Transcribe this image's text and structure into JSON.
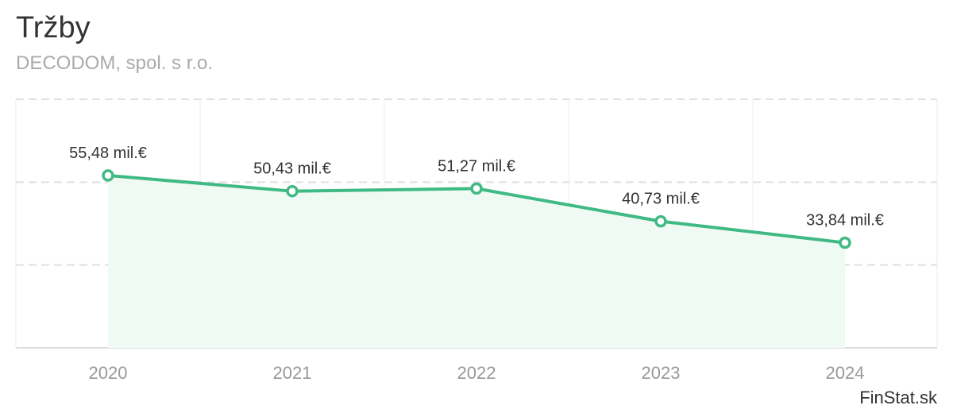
{
  "header": {
    "title": "Tržby",
    "subtitle": "DECODOM, spol. s r.o."
  },
  "credit": "FinStat.sk",
  "colors": {
    "line": "#3fba84",
    "area": "#f0faf5",
    "grid": "#e0e0e0",
    "tick_text": "#999999",
    "label_text": "#333333"
  },
  "chart_data": {
    "type": "area",
    "title": "Tržby",
    "subtitle": "DECODOM, spol. s r.o.",
    "categories": [
      "2020",
      "2021",
      "2022",
      "2023",
      "2024"
    ],
    "values": [
      55.48,
      50.43,
      51.27,
      40.73,
      33.84
    ],
    "data_labels": [
      "55,48 mil.€",
      "50,43 mil.€",
      "51,27 mil.€",
      "40,73 mil.€",
      "33,84 mil.€"
    ],
    "unit": "mil.€",
    "ylim": [
      0,
      80
    ],
    "grid": true,
    "legend": "none"
  }
}
